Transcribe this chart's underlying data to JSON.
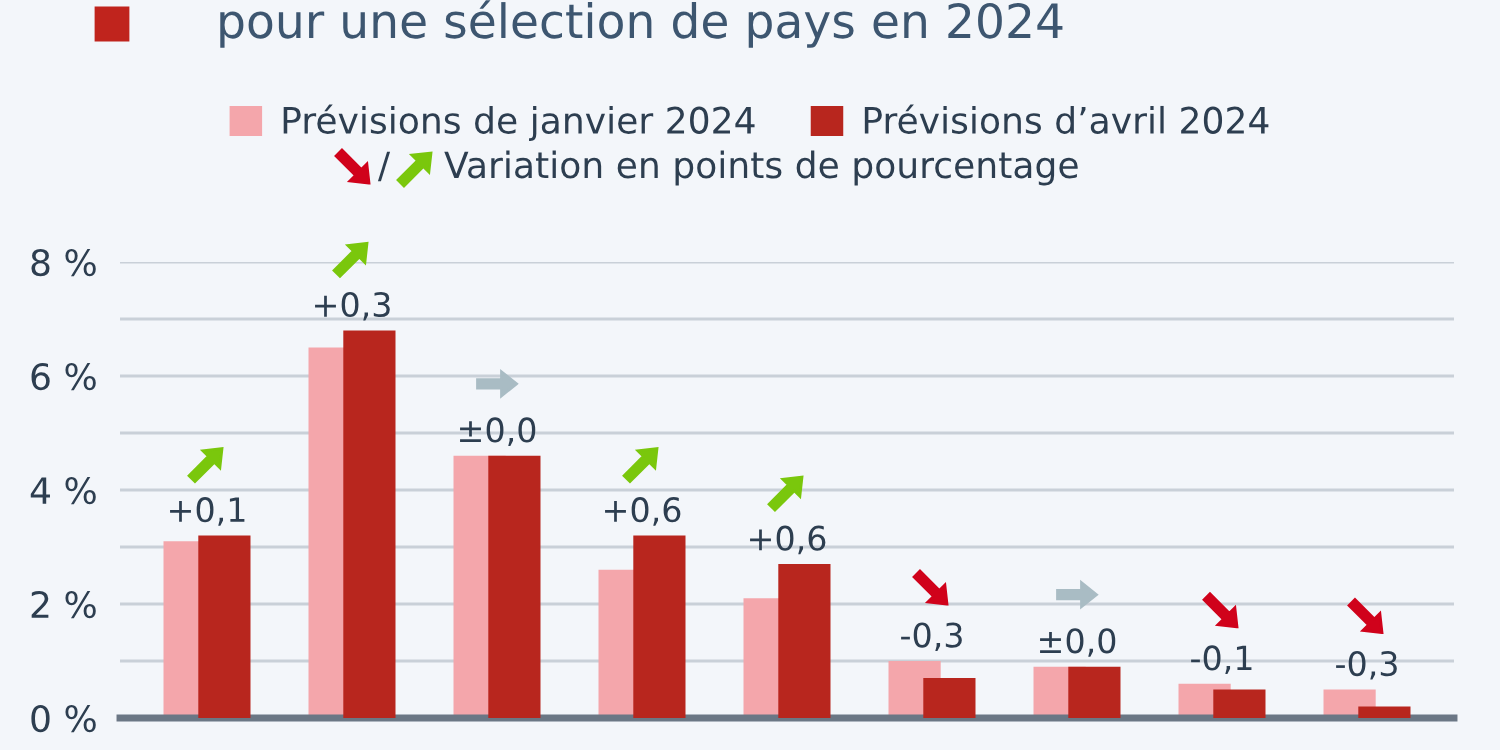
{
  "chart_data": {
    "type": "bar",
    "title": "pour une sélection de pays en 2024",
    "categories": [
      null,
      null,
      null,
      null,
      null,
      null,
      null,
      null,
      null
    ],
    "series": [
      {
        "name": "Prévisions de janvier 2024",
        "color": "#f4a6ab",
        "values": [
          3.1,
          6.5,
          4.6,
          2.6,
          2.1,
          1.0,
          0.9,
          0.6,
          0.5
        ]
      },
      {
        "name": "Prévisions d’avril 2024",
        "color": "#b8261e",
        "values": [
          3.2,
          6.8,
          4.6,
          3.2,
          2.7,
          0.7,
          0.9,
          0.5,
          0.2
        ]
      }
    ],
    "annotations": [
      "/",
      "Variation en points de pourcentage",
      "+0,1",
      "+0,3",
      "±0,0",
      "+0,6",
      "+0,6",
      "-0,3",
      "±0,0",
      "-0,1",
      "-0,3"
    ],
    "ylim": [
      0,
      8
    ],
    "yticks": [
      {
        "value": 0,
        "label": "0 %"
      },
      {
        "value": 1,
        "label": null
      },
      {
        "value": 2,
        "label": "2 %"
      },
      {
        "value": 3,
        "label": null
      },
      {
        "value": 4,
        "label": "4 %"
      },
      {
        "value": 5,
        "label": null
      },
      {
        "value": 6,
        "label": "6 %"
      },
      {
        "value": 7,
        "label": null
      },
      {
        "value": 8,
        "label": "8 %"
      }
    ],
    "grid": "y",
    "legend": "top"
  }
}
